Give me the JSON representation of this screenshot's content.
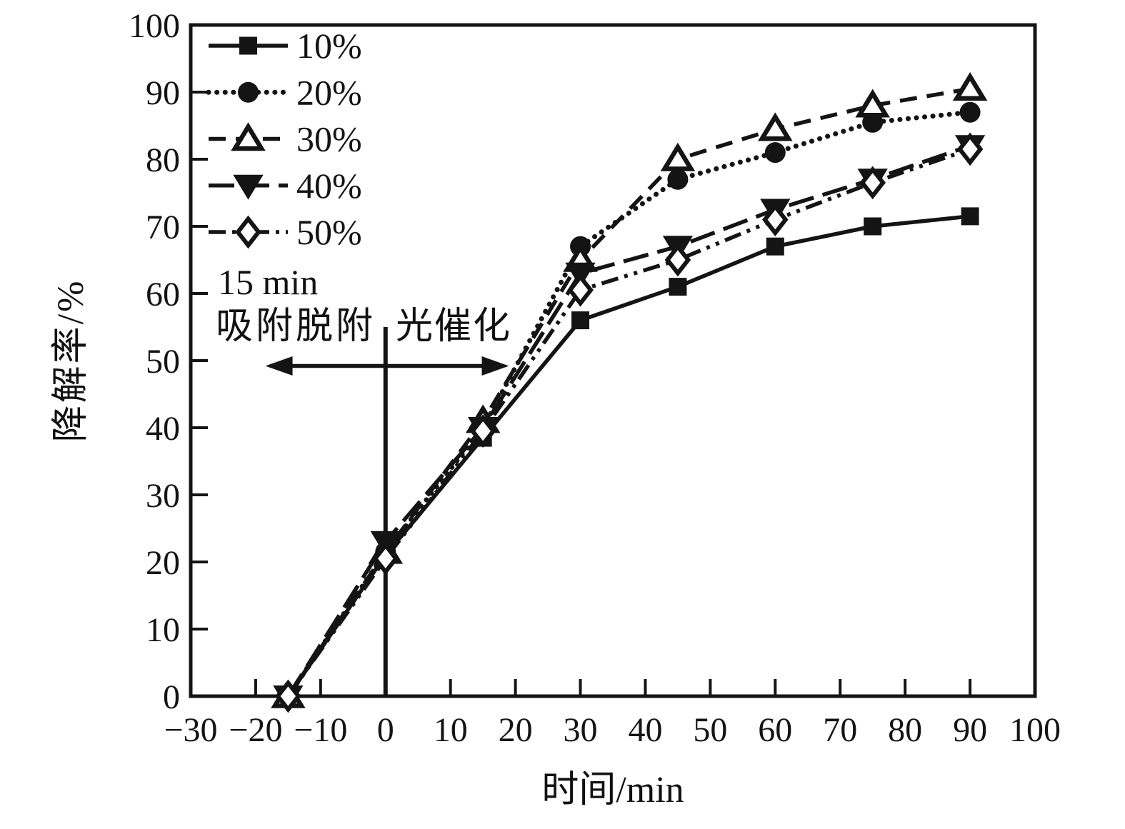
{
  "chart_data": {
    "type": "line",
    "title": "",
    "xlabel": "时间/min",
    "ylabel": "降解率/%",
    "xlim": [
      -30,
      100
    ],
    "ylim": [
      0,
      100
    ],
    "x_ticks": [
      -30,
      -20,
      -10,
      0,
      10,
      20,
      30,
      40,
      50,
      60,
      70,
      80,
      90,
      100
    ],
    "y_ticks": [
      0,
      10,
      20,
      30,
      40,
      50,
      60,
      70,
      80,
      90,
      100
    ],
    "grid": false,
    "legend_position": "top-left",
    "x": [
      -15,
      0,
      15,
      30,
      45,
      60,
      75,
      90
    ],
    "series": [
      {
        "name": "10%",
        "marker": "square-filled-icon",
        "line": "solid",
        "values": [
          0,
          21,
          38.5,
          56,
          61,
          67,
          70,
          71.5
        ]
      },
      {
        "name": "20%",
        "marker": "circle-filled-icon",
        "line": "dotted",
        "values": [
          0,
          21.5,
          40,
          67,
          77,
          81,
          85.5,
          87
        ]
      },
      {
        "name": "30%",
        "marker": "triangle-up-open-icon",
        "line": "dashed",
        "values": [
          0,
          21.5,
          41,
          65,
          80,
          84.5,
          88,
          90.5
        ]
      },
      {
        "name": "40%",
        "marker": "triangle-down-filled-icon",
        "line": "long-dash",
        "values": [
          0,
          23,
          40,
          63,
          67,
          72.5,
          77,
          82
        ]
      },
      {
        "name": "50%",
        "marker": "diamond-open-icon",
        "line": "dash-dot-dot",
        "values": [
          0,
          20.5,
          39.5,
          60.5,
          65,
          71,
          76.5,
          81.5
        ]
      }
    ],
    "annotations": {
      "duration_label": "15 min",
      "left_label": "吸附脱附",
      "right_label": "光催化",
      "divider_x": 0,
      "divider_y_range": [
        0,
        55
      ],
      "arrow_y": 49.2,
      "arrow_x_range": [
        -18.5,
        19
      ]
    },
    "colors": {
      "ink": "#141414",
      "background": "#ffffff"
    }
  }
}
